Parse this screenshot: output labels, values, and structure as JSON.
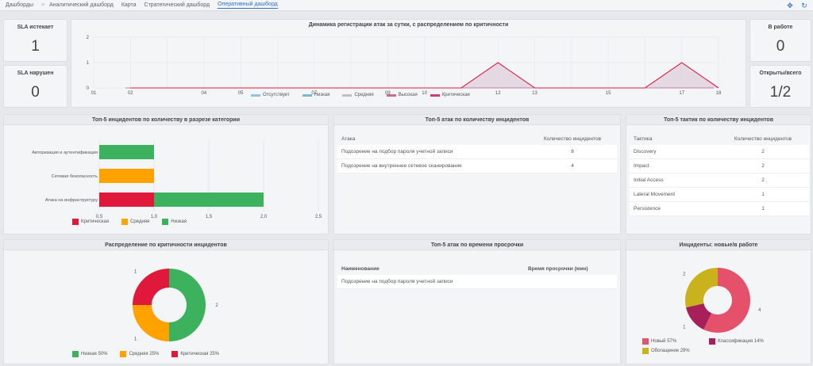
{
  "nav": {
    "items": [
      "Дашборды",
      "Аналитический дашборд",
      "Карта",
      "Стратегический дашборд",
      "Оперативный дашборд"
    ],
    "separator": ">"
  },
  "kpi": {
    "sla_expiring": {
      "title": "SLA истекает",
      "value": "1"
    },
    "sla_violated": {
      "title": "SLA нарушен",
      "value": "0"
    },
    "in_progress": {
      "title": "В работе",
      "value": "0"
    },
    "open_total": {
      "title": "Открыты/всего",
      "value": "1/2"
    }
  },
  "timeline": {
    "title": "Динамика регистрации атак за сутки, с распределением по критичности",
    "legend": [
      {
        "label": "Отсутствует",
        "color": "#8fc3ea"
      },
      {
        "label": "Низкая",
        "color": "#7ab8d8"
      },
      {
        "label": "Средняя",
        "color": "#c8b9c6"
      },
      {
        "label": "Высокая",
        "color": "#c86a9a"
      },
      {
        "label": "Критическая",
        "color": "#d13b7a"
      }
    ]
  },
  "top5_category": {
    "title": "Топ-5 инцидентов по количеству в разрезе категории",
    "legend": [
      {
        "label": "Критическая",
        "color": "#e0193c"
      },
      {
        "label": "Средняя",
        "color": "#ffa200"
      },
      {
        "label": "Низкая",
        "color": "#3cb25f"
      }
    ]
  },
  "top5_attacks": {
    "title": "Топ-5 атак по количеству инцидентов",
    "col_attack": "Атака",
    "col_count": "Количество инцидентов",
    "rows": [
      {
        "name": "Подозрение на подбор пароля учетной записи",
        "count": "8"
      },
      {
        "name": "Подозрение на внутреннее сетевое сканирование",
        "count": "4"
      }
    ]
  },
  "top5_tactics": {
    "title": "Топ-5 тактик по количеству инцидентов",
    "col_tactic": "Тактика",
    "col_count": "Количество инцидентов",
    "rows": [
      {
        "name": "Discovery",
        "count": "2"
      },
      {
        "name": "Impact",
        "count": "2"
      },
      {
        "name": "Initial Access",
        "count": "2"
      },
      {
        "name": "Lateral Movement",
        "count": "1"
      },
      {
        "name": "Persistence",
        "count": "1"
      }
    ]
  },
  "criticality": {
    "title": "Распределение по критичности инцидентов",
    "legend": [
      {
        "label": "Низкая 50%",
        "color": "#3cb25f"
      },
      {
        "label": "Средняя 25%",
        "color": "#ffa200"
      },
      {
        "label": "Критическая 25%",
        "color": "#e0193c"
      }
    ]
  },
  "overdue": {
    "title": "Топ-5 атак по времени просрочки",
    "col_name": "Наименование",
    "col_time": "Время просрочки (мин)",
    "rows": [
      {
        "name": "Подозрение на подбор пароля учетной записи",
        "time": ""
      }
    ]
  },
  "new_in_work": {
    "title": "Инциденты: новые/в работе",
    "legend": [
      {
        "label": "Новый 57%",
        "color": "#e5506a"
      },
      {
        "label": "Классификация 14%",
        "color": "#a8205a"
      },
      {
        "label": "Обогащение 29%",
        "color": "#c9b21c"
      }
    ]
  },
  "chart_data": [
    {
      "type": "line",
      "title": "Динамика регистрации атак за сутки, с распределением по критичности",
      "x": [
        "01",
        "02",
        "03",
        "04",
        "05",
        "06",
        "07",
        "08",
        "09",
        "10",
        "11",
        "12",
        "13",
        "14",
        "15",
        "16",
        "17",
        "18"
      ],
      "x_tick_labels": [
        "01",
        "02",
        "04",
        "05",
        "07",
        "09",
        "10",
        "12",
        "13",
        "15",
        "17",
        "18"
      ],
      "ylim": [
        0,
        2
      ],
      "y_ticks": [
        "0",
        "1",
        "2"
      ],
      "series": [
        {
          "name": "Отсутствует",
          "values": [
            0,
            0,
            0,
            0,
            0,
            0,
            0,
            0,
            0,
            0,
            0,
            0,
            0,
            0,
            0,
            0,
            0,
            0
          ]
        },
        {
          "name": "Низкая",
          "values": [
            0,
            0,
            0,
            0,
            0,
            0,
            0,
            0,
            0,
            0,
            0,
            0,
            0,
            0,
            0,
            0,
            0,
            0
          ]
        },
        {
          "name": "Средняя",
          "values": [
            0,
            0,
            0,
            0,
            0,
            0,
            0,
            0,
            0,
            0,
            0,
            0,
            0,
            0,
            0,
            0,
            0,
            0
          ]
        },
        {
          "name": "Высокая",
          "values": [
            0,
            0,
            0,
            0,
            0,
            0,
            0,
            0,
            0,
            0,
            0,
            0,
            0,
            0,
            0,
            0,
            0,
            0
          ]
        },
        {
          "name": "Критическая",
          "values": [
            0,
            0,
            0,
            0,
            0,
            0,
            0,
            0,
            0,
            0,
            0,
            1,
            0,
            0,
            0,
            0,
            1,
            0
          ]
        }
      ]
    },
    {
      "type": "bar",
      "orientation": "horizontal",
      "stacked": true,
      "title": "Топ-5 инцидентов по количеству в разрезе категории",
      "categories": [
        "Авторизация и аутентификация",
        "Сетевая безопасность",
        "Атака на инфраструктуру"
      ],
      "xlim": [
        0.5,
        2.5
      ],
      "x_ticks": [
        "0,5",
        "1,0",
        "1,5",
        "2,0",
        "2,5"
      ],
      "series": [
        {
          "name": "Критическая",
          "values": [
            0,
            0,
            1
          ]
        },
        {
          "name": "Средняя",
          "values": [
            0,
            1,
            0
          ]
        },
        {
          "name": "Низкая",
          "values": [
            1,
            0,
            1
          ]
        }
      ]
    },
    {
      "type": "pie",
      "donut": true,
      "title": "Распределение по критичности инцидентов",
      "slices": [
        {
          "name": "Низкая",
          "value": 2,
          "label": "2"
        },
        {
          "name": "Средняя",
          "value": 1,
          "label": "1"
        },
        {
          "name": "Критическая",
          "value": 1,
          "label": "1"
        }
      ]
    },
    {
      "type": "pie",
      "donut": true,
      "title": "Инциденты: новые/в работе",
      "slices": [
        {
          "name": "Новый",
          "value": 4,
          "label": "4"
        },
        {
          "name": "Классификация",
          "value": 1,
          "label": "1"
        },
        {
          "name": "Обогащение",
          "value": 2,
          "label": "2"
        }
      ]
    }
  ]
}
